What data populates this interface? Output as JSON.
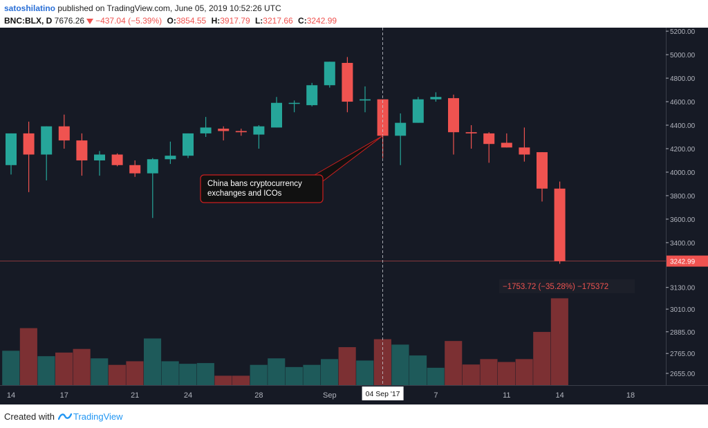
{
  "header": {
    "author": "satoshilatino",
    "published": "published on TradingView.com, June 05, 2019 10:52:26 UTC",
    "symbol": "BNC:BLX, D",
    "last": "7676.26",
    "change": "−437.04 (−5.39%)",
    "o_label": "O:",
    "o_value": "3854.55",
    "h_label": "H:",
    "h_value": "3917.79",
    "l_label": "L:",
    "l_value": "3217.66",
    "c_label": "C:",
    "c_value": "3242.99"
  },
  "footer": {
    "created": "Created with",
    "brand": "TradingView"
  },
  "chart_data": {
    "type": "candlestick",
    "colors": {
      "background": "#161a25",
      "up": "#26a69a",
      "down": "#ef5350",
      "vol_up": "#1e5a5a",
      "vol_down": "#7c3033",
      "axis_text": "#b2b5be",
      "grid": "#1e222d"
    },
    "price_axis": {
      "ylim": [
        3170,
        5230
      ],
      "ticks": [
        "5200.00",
        "5000.00",
        "4800.00",
        "4600.00",
        "4400.00",
        "4200.00",
        "4000.00",
        "3800.00",
        "3600.00",
        "3400.00"
      ],
      "tick_values": [
        5200,
        5000,
        4800,
        4600,
        4400,
        4200,
        4000,
        3800,
        3600,
        3400
      ],
      "last_price_label": "3242.99",
      "last_price": 3243
    },
    "volume_axis": {
      "ticks": [
        "3130.00",
        "3010.00",
        "2885.00",
        "2765.00",
        "2655.00"
      ],
      "tick_values": [
        3130,
        3010,
        2885,
        2765,
        2655
      ],
      "min": 2590,
      "max": 3190
    },
    "x_axis": {
      "ticks": [
        {
          "label": "14",
          "i": 0
        },
        {
          "label": "17",
          "i": 3
        },
        {
          "label": "21",
          "i": 7
        },
        {
          "label": "24",
          "i": 10
        },
        {
          "label": "28",
          "i": 14
        },
        {
          "label": "Sep",
          "i": 18
        },
        {
          "label": "7",
          "i": 24
        },
        {
          "label": "11",
          "i": 28
        },
        {
          "label": "14",
          "i": 31
        },
        {
          "label": "18",
          "i": 35
        }
      ],
      "crosshair_label": "04 Sep '17",
      "crosshair_index": 21
    },
    "candles": [
      {
        "o": 4060,
        "h": 4330,
        "l": 3980,
        "c": 4330
      },
      {
        "o": 4330,
        "h": 4430,
        "l": 3830,
        "c": 4150
      },
      {
        "o": 4150,
        "h": 4390,
        "l": 3930,
        "c": 4390
      },
      {
        "o": 4390,
        "h": 4490,
        "l": 4200,
        "c": 4270
      },
      {
        "o": 4270,
        "h": 4330,
        "l": 3970,
        "c": 4100
      },
      {
        "o": 4100,
        "h": 4180,
        "l": 3970,
        "c": 4150
      },
      {
        "o": 4150,
        "h": 4160,
        "l": 4050,
        "c": 4060
      },
      {
        "o": 4060,
        "h": 4100,
        "l": 3960,
        "c": 3990
      },
      {
        "o": 3990,
        "h": 4120,
        "l": 3610,
        "c": 4110
      },
      {
        "o": 4110,
        "h": 4260,
        "l": 4070,
        "c": 4140
      },
      {
        "o": 4140,
        "h": 4330,
        "l": 4120,
        "c": 4330
      },
      {
        "o": 4330,
        "h": 4470,
        "l": 4300,
        "c": 4380
      },
      {
        "o": 4370,
        "h": 4390,
        "l": 4270,
        "c": 4350
      },
      {
        "o": 4350,
        "h": 4370,
        "l": 4310,
        "c": 4340
      },
      {
        "o": 4320,
        "h": 4400,
        "l": 4200,
        "c": 4390
      },
      {
        "o": 4380,
        "h": 4640,
        "l": 4380,
        "c": 4590
      },
      {
        "o": 4590,
        "h": 4610,
        "l": 4510,
        "c": 4590
      },
      {
        "o": 4570,
        "h": 4760,
        "l": 4560,
        "c": 4740
      },
      {
        "o": 4740,
        "h": 4940,
        "l": 4720,
        "c": 4940
      },
      {
        "o": 4930,
        "h": 4980,
        "l": 4510,
        "c": 4600
      },
      {
        "o": 4610,
        "h": 4730,
        "l": 4510,
        "c": 4620
      },
      {
        "o": 4620,
        "h": 4620,
        "l": 4120,
        "c": 4310
      },
      {
        "o": 4310,
        "h": 4500,
        "l": 4060,
        "c": 4420
      },
      {
        "o": 4420,
        "h": 4640,
        "l": 4420,
        "c": 4620
      },
      {
        "o": 4620,
        "h": 4680,
        "l": 4600,
        "c": 4640
      },
      {
        "o": 4630,
        "h": 4660,
        "l": 4150,
        "c": 4340
      },
      {
        "o": 4340,
        "h": 4400,
        "l": 4200,
        "c": 4330
      },
      {
        "o": 4330,
        "h": 4340,
        "l": 4080,
        "c": 4240
      },
      {
        "o": 4250,
        "h": 4330,
        "l": 4210,
        "c": 4210
      },
      {
        "o": 4210,
        "h": 4380,
        "l": 4090,
        "c": 4150
      },
      {
        "o": 4170,
        "h": 4170,
        "l": 3750,
        "c": 3860
      },
      {
        "o": 3860,
        "h": 3920,
        "l": 3220,
        "c": 3243
      }
    ],
    "volume": [
      2780,
      2905,
      2750,
      2770,
      2790,
      2738,
      2702,
      2722,
      2848,
      2722,
      2708,
      2712,
      2642,
      2642,
      2702,
      2738,
      2690,
      2702,
      2734,
      2800,
      2726,
      2844,
      2814,
      2754,
      2686,
      2834,
      2704,
      2734,
      2718,
      2734,
      2884,
      3070
    ],
    "stats_label": "−1753.72 (−35.28%) −175372",
    "annotation": {
      "lines": [
        "China bans cryptocurrency",
        "exchanges and ICOs"
      ],
      "target_index": 21,
      "target_price": 4310
    }
  }
}
